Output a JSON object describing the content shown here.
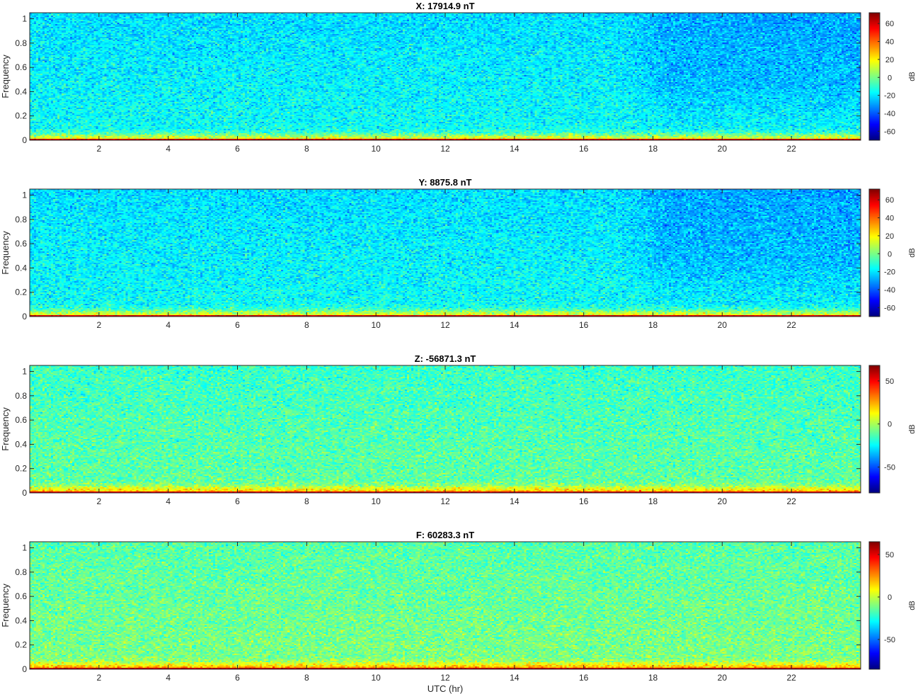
{
  "chart_data": [
    {
      "type": "heatmap",
      "title": "X: 17914.9 nT",
      "xlabel": "",
      "ylabel": "Frequency",
      "x_ticks": [
        2,
        4,
        6,
        8,
        10,
        12,
        14,
        16,
        18,
        20,
        22
      ],
      "y_ticks": [
        0,
        0.2,
        0.4,
        0.6,
        0.8,
        1
      ],
      "xlim": [
        0,
        24
      ],
      "ylim": [
        0,
        1.05
      ],
      "colorbar": {
        "label": "dB",
        "ticks": [
          60,
          40,
          20,
          0,
          -20,
          -40,
          -60
        ],
        "range": [
          -70,
          72
        ]
      },
      "colormap": "jet",
      "background_level_db": -15,
      "low_frequency_band_db": 60,
      "quiet_region_hours": [
        17,
        24
      ]
    },
    {
      "type": "heatmap",
      "title": "Y: 8875.8 nT",
      "xlabel": "",
      "ylabel": "Frequency",
      "x_ticks": [
        2,
        4,
        6,
        8,
        10,
        12,
        14,
        16,
        18,
        20,
        22
      ],
      "y_ticks": [
        0,
        0.2,
        0.4,
        0.6,
        0.8,
        1
      ],
      "xlim": [
        0,
        24
      ],
      "ylim": [
        0,
        1.05
      ],
      "colorbar": {
        "label": "dB",
        "ticks": [
          60,
          40,
          20,
          0,
          -20,
          -40,
          -60
        ],
        "range": [
          -70,
          72
        ]
      },
      "colormap": "jet",
      "background_level_db": -15,
      "low_frequency_band_db": 60,
      "quiet_region_hours": [
        17,
        24
      ]
    },
    {
      "type": "heatmap",
      "title": "Z: -56871.3 nT",
      "xlabel": "",
      "ylabel": "Frequency",
      "x_ticks": [
        2,
        4,
        6,
        8,
        10,
        12,
        14,
        16,
        18,
        20,
        22
      ],
      "y_ticks": [
        0,
        0.2,
        0.4,
        0.6,
        0.8,
        1
      ],
      "xlim": [
        0,
        24
      ],
      "ylim": [
        0,
        1.05
      ],
      "colorbar": {
        "label": "dB",
        "ticks": [
          50,
          0,
          -50
        ],
        "range": [
          -80,
          68
        ]
      },
      "colormap": "jet",
      "background_level_db": -10,
      "low_frequency_band_db": 55
    },
    {
      "type": "heatmap",
      "title": "F: 60283.3 nT",
      "xlabel": "UTC (hr)",
      "ylabel": "Frequency",
      "x_ticks": [
        2,
        4,
        6,
        8,
        10,
        12,
        14,
        16,
        18,
        20,
        22
      ],
      "y_ticks": [
        0,
        0.2,
        0.4,
        0.6,
        0.8,
        1
      ],
      "xlim": [
        0,
        24
      ],
      "ylim": [
        0,
        1.05
      ],
      "colorbar": {
        "label": "dB",
        "ticks": [
          50,
          0,
          -50
        ],
        "range": [
          -85,
          65
        ]
      },
      "colormap": "jet",
      "background_level_db": -10,
      "low_frequency_band_db": 55
    }
  ]
}
